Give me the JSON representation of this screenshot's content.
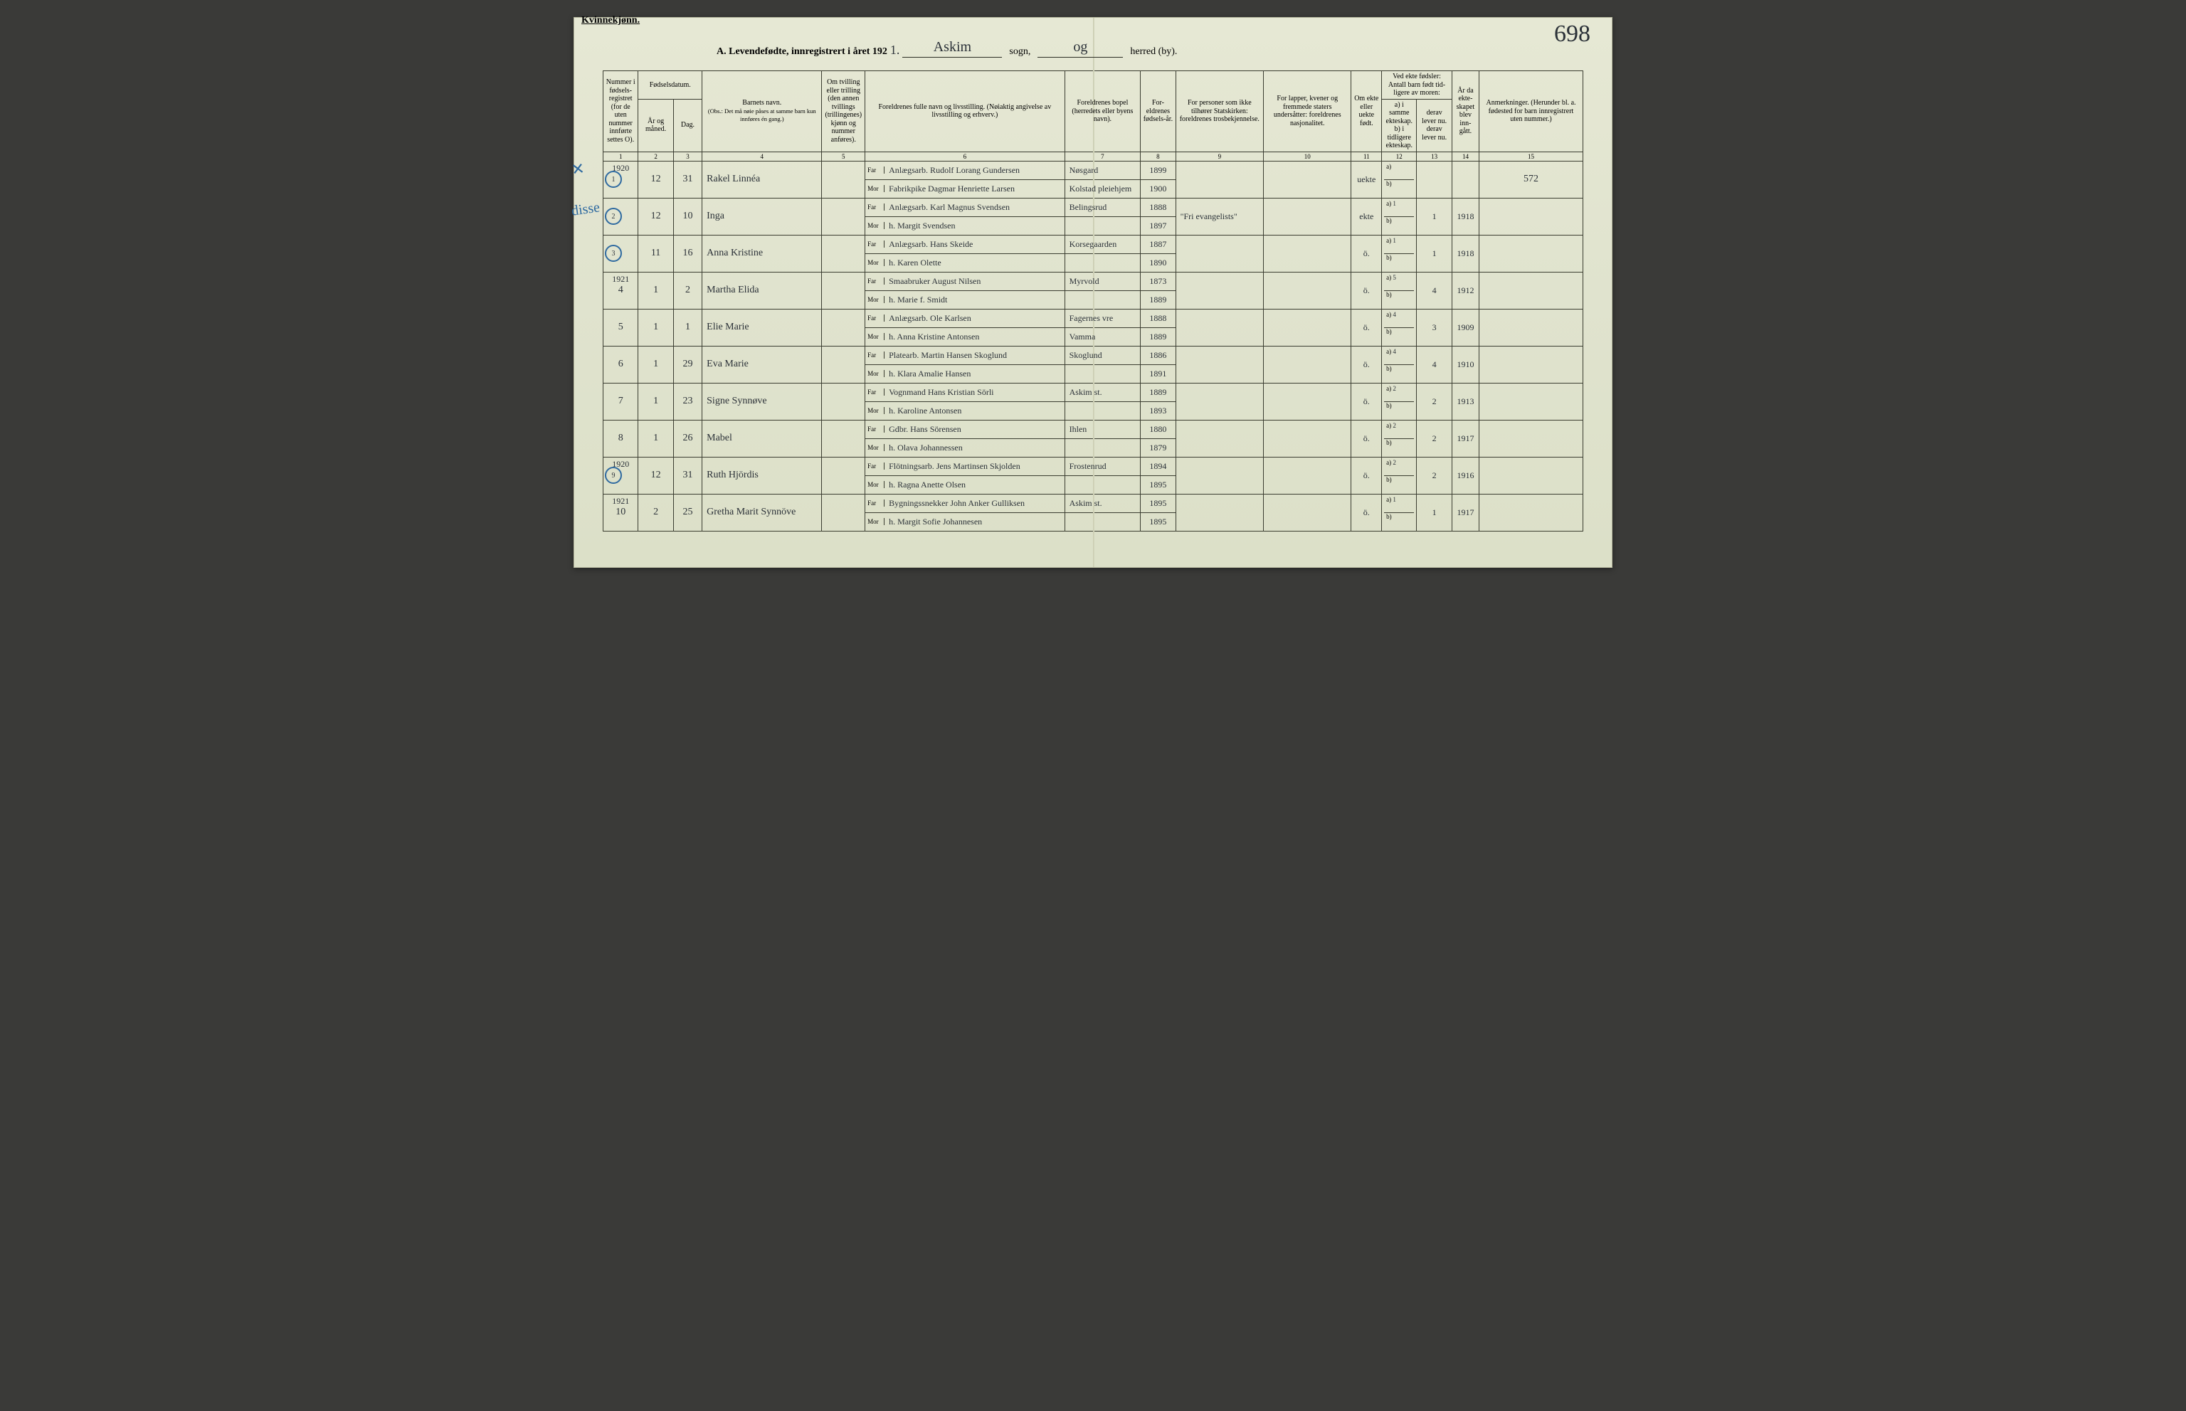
{
  "header": {
    "kvinne": "Kvinnekjønn.",
    "title": "A.  Levendefødte, innregistrert i året 192",
    "year_suffix": "1.",
    "sogn_label": "sogn,",
    "herred_label": "herred (by).",
    "sogn_value": "Askim",
    "herred_value": "og",
    "corner_number": "698"
  },
  "cols": {
    "c1": "Nummer i fødsels-registret (for de uten nummer innførte settes O).",
    "c2_top": "Fødselsdatum.",
    "c2a": "År og måned.",
    "c2b": "Dag.",
    "c4": "Barnets navn.",
    "c4_note": "(Obs.: Det må nøie påses at samme barn kun innføres én gang.)",
    "c5": "Om tvilling eller trilling (den annen tvillings (trillingenes) kjønn og nummer anføres).",
    "c6": "Foreldrenes fulle navn og livsstilling. (Nøiaktig angivelse av livsstilling og erhverv.)",
    "c7": "Foreldrenes bopel (herredets eller byens navn).",
    "c8": "For-eldrenes fødsels-år.",
    "c9": "For personer som ikke tilhører Statskirken: foreldrenes trosbekjennelse.",
    "c10": "For lapper, kvener og fremmede staters undersåtter: foreldrenes nasjonalitet.",
    "c11": "Om ekte eller uekte født.",
    "c12_top": "Ved ekte fødsler: Antall barn født tid-ligere av moren:",
    "c12a": "a) i samme ekteskap.",
    "c12b": "b) i tidligere ekteskap.",
    "c13a": "derav lever nu.",
    "c13b": "derav lever nu.",
    "c14": "År da ekte-skapet blev inn-gått.",
    "c15": "Anmerkninger. (Herunder bl. a. fødested for barn innregistrert uten nummer.)",
    "far": "Far",
    "mor": "Mor"
  },
  "colnums": [
    "1",
    "2",
    "3",
    "4",
    "5",
    "6",
    "7",
    "8",
    "9",
    "10",
    "11",
    "12",
    "13",
    "14",
    "15"
  ],
  "side_notes": {
    "r1": "✕",
    "r2": "disse"
  },
  "note_572": "572",
  "rows": [
    {
      "num": "1",
      "circle": true,
      "ym_top": "1920",
      "ym": "12",
      "day": "31",
      "name": "Rakel Linnéa",
      "far": "Anlægsarb. Rudolf Lorang Gundersen",
      "mor": "Fabrikpike Dagmar Henriette Larsen",
      "res_far": "Nøsgard",
      "res_mor": "Kolstad pleiehjem",
      "by_far": "1899",
      "by_mor": "1900",
      "col9": "",
      "col10": "",
      "col11": "uekte",
      "c12a": "",
      "c12b": "",
      "c13": "",
      "c14": "",
      "notes": "572"
    },
    {
      "num": "2",
      "circle": true,
      "ym_top": "",
      "ym": "12",
      "day": "10",
      "name": "Inga",
      "far": "Anlægsarb. Karl Magnus Svendsen",
      "mor": "h. Margit Svendsen",
      "res_far": "Belingsrud",
      "res_mor": "",
      "by_far": "1888",
      "by_mor": "1897",
      "col9": "\"Fri evangelists\"",
      "col10": "",
      "col11": "ekte",
      "c12a": "1",
      "c12b": "",
      "c13": "1",
      "c14": "1918",
      "notes": ""
    },
    {
      "num": "3",
      "circle": true,
      "ym_top": "",
      "ym": "11",
      "day": "16",
      "name": "Anna Kristine",
      "far": "Anlægsarb. Hans Skeide",
      "mor": "h. Karen Olette",
      "res_far": "Korsegaarden",
      "res_mor": "",
      "by_far": "1887",
      "by_mor": "1890",
      "col9": "",
      "col10": "",
      "col11": "ö.",
      "c12a": "1",
      "c12b": "",
      "c13": "1",
      "c14": "1918",
      "notes": ""
    },
    {
      "num": "4",
      "circle": false,
      "ym_top": "1921",
      "ym": "1",
      "day": "2",
      "name": "Martha Elida",
      "far": "Smaabruker August Nilsen",
      "mor": "h. Marie f. Smidt",
      "res_far": "Myrvold",
      "res_mor": "",
      "by_far": "1873",
      "by_mor": "1889",
      "col9": "",
      "col10": "",
      "col11": "ö.",
      "c12a": "5",
      "c12b": "",
      "c13": "4",
      "c14": "1912",
      "notes": ""
    },
    {
      "num": "5",
      "circle": false,
      "ym_top": "",
      "ym": "1",
      "day": "1",
      "name": "Elie Marie",
      "far": "Anlægsarb. Ole Karlsen",
      "mor": "h. Anna Kristine Antonsen",
      "res_far": "Fagernes vre",
      "res_mor": "Vamma",
      "by_far": "1888",
      "by_mor": "1889",
      "col9": "",
      "col10": "",
      "col11": "ö.",
      "c12a": "4",
      "c12b": "",
      "c13": "3",
      "c14": "1909",
      "notes": ""
    },
    {
      "num": "6",
      "circle": false,
      "ym_top": "",
      "ym": "1",
      "day": "29",
      "name": "Eva Marie",
      "far": "Platearb. Martin Hansen Skoglund",
      "mor": "h. Klara Amalie Hansen",
      "res_far": "Skoglund",
      "res_mor": "",
      "by_far": "1886",
      "by_mor": "1891",
      "col9": "",
      "col10": "",
      "col11": "ö.",
      "c12a": "4",
      "c12b": "",
      "c13": "4",
      "c14": "1910",
      "notes": ""
    },
    {
      "num": "7",
      "circle": false,
      "ym_top": "",
      "ym": "1",
      "day": "23",
      "name": "Signe Synnøve",
      "far": "Vognmand Hans Kristian Sörli",
      "mor": "h. Karoline Antonsen",
      "res_far": "Askim st.",
      "res_mor": "",
      "by_far": "1889",
      "by_mor": "1893",
      "col9": "",
      "col10": "",
      "col11": "ö.",
      "c12a": "2",
      "c12b": "",
      "c13": "2",
      "c14": "1913",
      "notes": ""
    },
    {
      "num": "8",
      "circle": false,
      "ym_top": "",
      "ym": "1",
      "day": "26",
      "name": "Mabel",
      "far": "Gdbr. Hans Sörensen",
      "mor": "h. Olava Johannessen",
      "res_far": "Ihlen",
      "res_mor": "",
      "by_far": "1880",
      "by_mor": "1879",
      "col9": "",
      "col10": "",
      "col11": "ö.",
      "c12a": "2",
      "c12b": "",
      "c13": "2",
      "c14": "1917",
      "notes": ""
    },
    {
      "num": "9",
      "circle": true,
      "ym_top": "1920",
      "ym": "12",
      "day": "31",
      "name": "Ruth Hjördis",
      "far": "Flötningsarb. Jens Martinsen Skjolden",
      "mor": "h. Ragna Anette Olsen",
      "res_far": "Frostenrud",
      "res_mor": "",
      "by_far": "1894",
      "by_mor": "1895",
      "col9": "",
      "col10": "",
      "col11": "ö.",
      "c12a": "2",
      "c12b": "",
      "c13": "2",
      "c14": "1916",
      "notes": ""
    },
    {
      "num": "10",
      "circle": false,
      "ym_top": "1921",
      "ym": "2",
      "day": "25",
      "name": "Gretha Marit Synnöve",
      "far": "Bygningssnekker John Anker Gulliksen",
      "mor": "h. Margit Sofie Johannesen",
      "res_far": "Askim st.",
      "res_mor": "",
      "by_far": "1895",
      "by_mor": "1895",
      "col9": "",
      "col10": "",
      "col11": "ö.",
      "c12a": "1",
      "c12b": "",
      "c13": "1",
      "c14": "1917",
      "notes": ""
    }
  ],
  "colors": {
    "paper": "#e2e5cf",
    "ink": "#2a2c24",
    "hand_ink": "#2b3138",
    "blue_pencil": "#3a6fa0",
    "border": "#3a3c30"
  }
}
